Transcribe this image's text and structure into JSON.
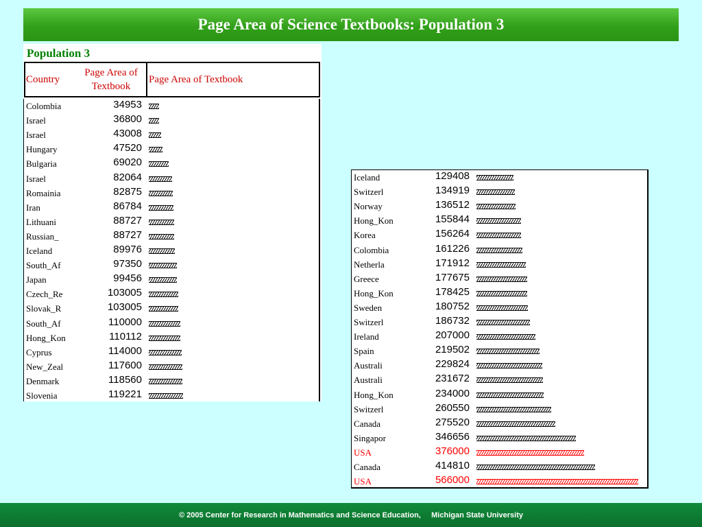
{
  "title": "Page Area of Science Textbooks: Population 3",
  "footer": "© 2005 Center for Research in Mathematics and Science Education,     Michigan State University",
  "table": {
    "caption": "Population 3",
    "headers": {
      "country": "Country",
      "page_area": "Page Area of Textbook",
      "bar": "Page Area of Textbook"
    }
  },
  "colors": {
    "highlight": "#ff0000",
    "header_text": "#cc0000",
    "caption": "#008000",
    "title_bar": "#32a01a",
    "footer_bar": "#0b6f2c",
    "background": "#ccffff"
  },
  "chart_data": {
    "type": "bar",
    "orientation": "horizontal",
    "title": "Page Area of Science Textbooks: Population 3",
    "bar_max_value": 566000,
    "rows": [
      {
        "country": "Colombia",
        "value": 34953
      },
      {
        "country": "Israel",
        "value": 36800
      },
      {
        "country": "Israel",
        "value": 43008
      },
      {
        "country": "Hungary",
        "value": 47520
      },
      {
        "country": "Bulgaria",
        "value": 69020
      },
      {
        "country": "Israel",
        "value": 82064
      },
      {
        "country": "Romainia",
        "value": 82875
      },
      {
        "country": "Iran",
        "value": 86784
      },
      {
        "country": "Lithuani",
        "value": 88727
      },
      {
        "country": "Russian_",
        "value": 88727
      },
      {
        "country": "Iceland",
        "value": 89976
      },
      {
        "country": "South_Af",
        "value": 97350
      },
      {
        "country": "Japan",
        "value": 99456
      },
      {
        "country": "Czech_Re",
        "value": 103005
      },
      {
        "country": "Slovak_R",
        "value": 103005
      },
      {
        "country": "South_Af",
        "value": 110000
      },
      {
        "country": "Hong_Kon",
        "value": 110112
      },
      {
        "country": "Cyprus",
        "value": 114000
      },
      {
        "country": "New_Zeal",
        "value": 117600
      },
      {
        "country": "Denmark",
        "value": 118560
      },
      {
        "country": "Slovenia",
        "value": 119221
      },
      {
        "country": "Iceland",
        "value": 129408
      },
      {
        "country": "Switzerl",
        "value": 134919
      },
      {
        "country": "Norway",
        "value": 136512
      },
      {
        "country": "Hong_Kon",
        "value": 155844
      },
      {
        "country": "Korea",
        "value": 156264
      },
      {
        "country": "Colombia",
        "value": 161226
      },
      {
        "country": "Netherla",
        "value": 171912
      },
      {
        "country": "Greece",
        "value": 177675
      },
      {
        "country": "Hong_Kon",
        "value": 178425
      },
      {
        "country": "Sweden",
        "value": 180752
      },
      {
        "country": "Switzerl",
        "value": 186732
      },
      {
        "country": "Ireland",
        "value": 207000
      },
      {
        "country": "Spain",
        "value": 219502
      },
      {
        "country": "Australi",
        "value": 229824
      },
      {
        "country": "Australi",
        "value": 231672
      },
      {
        "country": "Hong_Kon",
        "value": 234000
      },
      {
        "country": "Switzerl",
        "value": 260550
      },
      {
        "country": "Canada",
        "value": 275520
      },
      {
        "country": "Singapor",
        "value": 346656
      },
      {
        "country": "USA",
        "value": 376000,
        "highlight": true
      },
      {
        "country": "Canada",
        "value": 414810
      },
      {
        "country": "USA",
        "value": 566000,
        "highlight": true
      }
    ]
  }
}
